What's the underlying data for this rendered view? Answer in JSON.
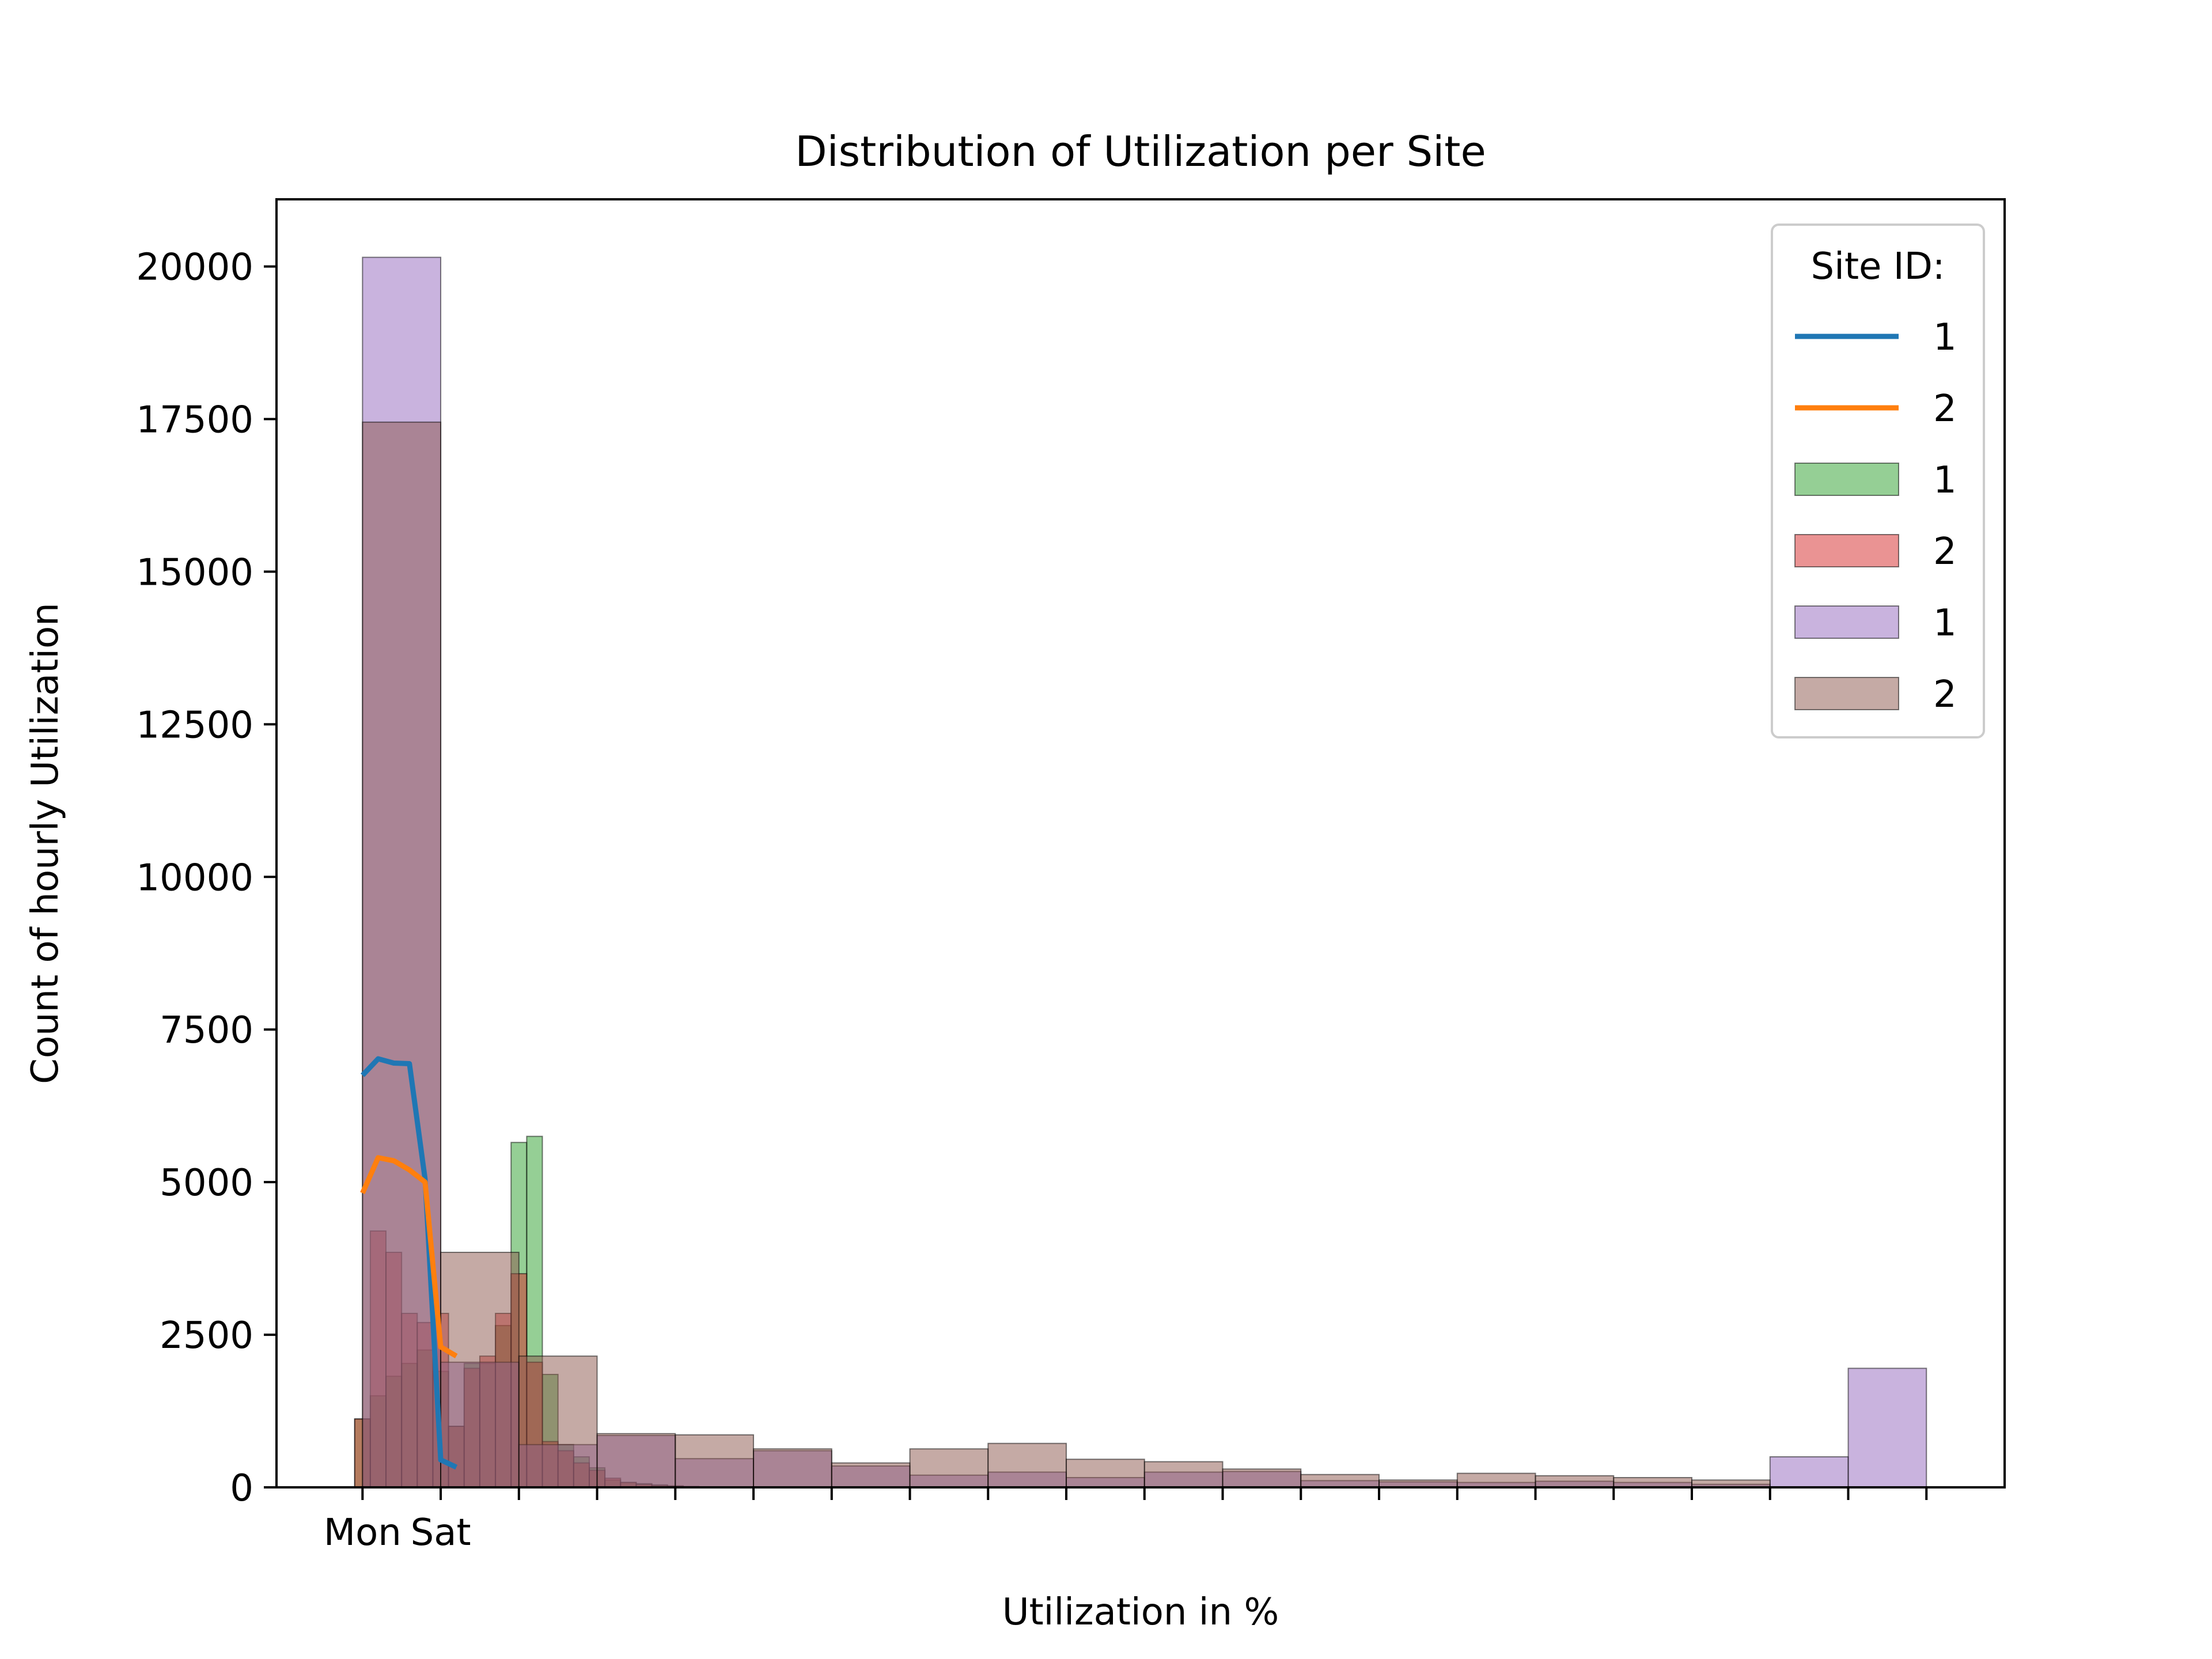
{
  "chart_data": {
    "type": "bar",
    "title": "Distribution of Utilization per Site",
    "xlabel": "Utilization in %",
    "ylabel": "Count of hourly Utilization",
    "xlim": [
      -1.1,
      21
    ],
    "ylim": [
      0,
      21100
    ],
    "yticks": [
      0,
      2500,
      5000,
      7500,
      10000,
      12500,
      15000,
      17500,
      20000
    ],
    "xticks": [
      0,
      1,
      2,
      3,
      4,
      5,
      6,
      7,
      8,
      9,
      10,
      11,
      12,
      13,
      14,
      15,
      16,
      17,
      18,
      19,
      20
    ],
    "xtick_labels": [
      {
        "x": 0,
        "label": "Mon"
      },
      {
        "x": 1,
        "label": "Sat"
      }
    ],
    "grid": false,
    "legend": {
      "title": "Site ID:",
      "position": "top-right",
      "entries": [
        {
          "label": "1",
          "kind": "line",
          "color": "#1f77b4"
        },
        {
          "label": "2",
          "kind": "line",
          "color": "#ff7f0e"
        },
        {
          "label": "1",
          "kind": "bar",
          "color": "#2ca02c"
        },
        {
          "label": "2",
          "kind": "bar",
          "color": "#d62728"
        },
        {
          "label": "1",
          "kind": "bar",
          "color": "#9467bd"
        },
        {
          "label": "2",
          "kind": "bar",
          "color": "#8c564b"
        }
      ]
    },
    "series": [
      {
        "kind": "line",
        "color": "#1f77b4",
        "x": [
          0,
          0.2,
          0.4,
          0.6,
          0.8,
          1.0,
          1.2
        ],
        "y": [
          6750,
          7020,
          6950,
          6940,
          5050,
          450,
          330
        ]
      },
      {
        "kind": "line",
        "color": "#ff7f0e",
        "x": [
          0,
          0.2,
          0.4,
          0.6,
          0.8,
          1.0,
          1.2
        ],
        "y": [
          4820,
          5400,
          5350,
          5200,
          5000,
          2300,
          2150
        ]
      },
      {
        "kind": "bar",
        "color": "#2ca02c",
        "opacity": 0.5,
        "x_start": -0.1,
        "bin_width": 0.2,
        "values": [
          1120,
          1500,
          1820,
          2030,
          2250,
          1900,
          1000,
          2030,
          2030,
          2650,
          5650,
          5750,
          1850,
          700,
          500,
          320,
          120,
          80,
          60,
          40,
          25,
          15
        ]
      },
      {
        "kind": "bar",
        "color": "#d62728",
        "opacity": 0.5,
        "x_start": -0.1,
        "bin_width": 0.2,
        "values": [
          1120,
          4200,
          3850,
          2850,
          2700,
          2850,
          1000,
          1950,
          2150,
          2850,
          3500,
          2050,
          750,
          600,
          400,
          280,
          150,
          80,
          50,
          30,
          20,
          10
        ]
      },
      {
        "kind": "bar",
        "color": "#9467bd",
        "opacity": 0.5,
        "x_start": 0,
        "bin_width": 1,
        "values": [
          20150,
          2050,
          700,
          850,
          470,
          600,
          350,
          200,
          250,
          160,
          250,
          260,
          110,
          90,
          80,
          100,
          80,
          50,
          500,
          1950
        ]
      },
      {
        "kind": "bar",
        "color": "#8c564b",
        "opacity": 0.5,
        "x_start": 0,
        "bin_width": 1,
        "values": [
          17450,
          3850,
          2150,
          880,
          860,
          630,
          400,
          630,
          720,
          460,
          420,
          300,
          210,
          120,
          230,
          190,
          160,
          120,
          0,
          0
        ]
      }
    ]
  }
}
